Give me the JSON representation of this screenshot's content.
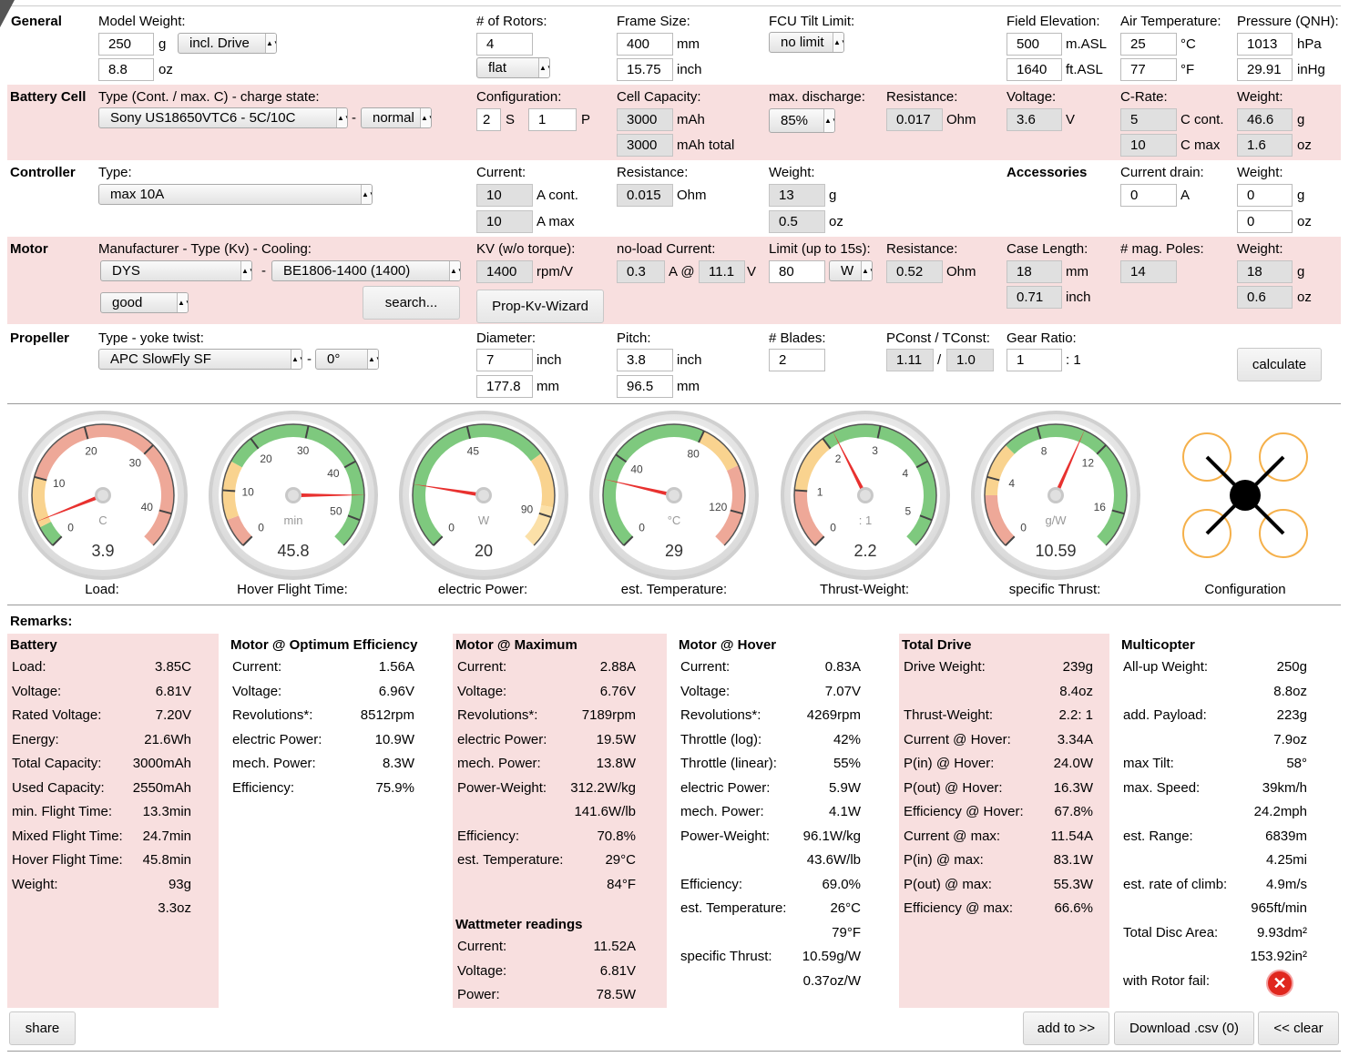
{
  "general": {
    "title": "General",
    "model_weight_label": "Model Weight:",
    "weight_g": "250",
    "unit_g": "g",
    "incl_drive": "incl. Drive",
    "weight_oz": "8.8",
    "unit_oz": "oz",
    "rotors_label": "# of Rotors:",
    "rotors": "4",
    "layout": "flat",
    "frame_label": "Frame Size:",
    "frame_mm": "400",
    "unit_mm": "mm",
    "frame_inch": "15.75",
    "unit_inch": "inch",
    "fcu_label": "FCU Tilt Limit:",
    "fcu": "no limit",
    "elev_label": "Field Elevation:",
    "elev_m": "500",
    "unit_masl": "m.ASL",
    "elev_ft": "1640",
    "unit_ftasl": "ft.ASL",
    "temp_label": "Air Temperature:",
    "temp_c": "25",
    "unit_c": "°C",
    "temp_f": "77",
    "unit_f": "°F",
    "press_label": "Pressure (QNH):",
    "press_hpa": "1013",
    "unit_hpa": "hPa",
    "press_inhg": "29.91",
    "unit_inhg": "inHg"
  },
  "battery": {
    "title": "Battery Cell",
    "type_label": "Type (Cont. / max. C) - charge state:",
    "type": "Sony US18650VTC6 - 5C/10C",
    "dash": "-",
    "charge": "normal",
    "config_label": "Configuration:",
    "s": "2",
    "s_unit": "S",
    "p": "1",
    "p_unit": "P",
    "cap_label": "Cell Capacity:",
    "cap": "3000",
    "cap_unit": "mAh",
    "cap_total": "3000",
    "cap_total_unit": "mAh total",
    "maxdis_label": "max. discharge:",
    "maxdis": "85%",
    "res_label": "Resistance:",
    "res": "0.017",
    "res_unit": "Ohm",
    "volt_label": "Voltage:",
    "volt": "3.6",
    "volt_unit": "V",
    "crate_label": "C-Rate:",
    "c_cont": "5",
    "c_cont_unit": "C cont.",
    "c_max": "10",
    "c_max_unit": "C max",
    "weight_label": "Weight:",
    "w_g": "46.6",
    "w_oz": "1.6"
  },
  "controller": {
    "title": "Controller",
    "type_label": "Type:",
    "type": "max 10A",
    "current_label": "Current:",
    "a_cont": "10",
    "a_cont_unit": "A cont.",
    "a_max": "10",
    "a_max_unit": "A max",
    "res_label": "Resistance:",
    "res": "0.015",
    "res_unit": "Ohm",
    "weight_label": "Weight:",
    "w_g": "13",
    "w_oz": "0.5",
    "acc_title": "Accessories",
    "drain_label": "Current drain:",
    "drain": "0",
    "drain_unit": "A",
    "acc_weight_label": "Weight:",
    "acc_w_g": "0",
    "acc_w_oz": "0"
  },
  "motor": {
    "title": "Motor",
    "mfr_label": "Manufacturer - Type (Kv) - Cooling:",
    "mfr": "DYS",
    "dash": "-",
    "type": "BE1806-1400 (1400)",
    "cooling": "good",
    "search": "search...",
    "kv_label": "KV (w/o torque):",
    "kv": "1400",
    "kv_unit": "rpm/V",
    "wizard": "Prop-Kv-Wizard",
    "noload_label": "no-load Current:",
    "noload_a": "0.3",
    "at": "A @",
    "noload_v": "11.1",
    "v_unit": "V",
    "limit_label": "Limit (up to 15s):",
    "limit": "80",
    "limit_unit": "W",
    "res_label": "Resistance:",
    "res": "0.52",
    "res_unit": "Ohm",
    "case_label": "Case Length:",
    "case_mm": "18",
    "case_inch": "0.71",
    "poles_label": "# mag. Poles:",
    "poles": "14",
    "weight_label": "Weight:",
    "w_g": "18",
    "w_oz": "0.6"
  },
  "propeller": {
    "title": "Propeller",
    "type_label": "Type - yoke twist:",
    "type": "APC SlowFly SF",
    "dash": "-",
    "twist": "0°",
    "dia_label": "Diameter:",
    "dia_in": "7",
    "dia_mm": "177.8",
    "pitch_label": "Pitch:",
    "pitch_in": "3.8",
    "pitch_mm": "96.5",
    "blades_label": "# Blades:",
    "blades": "2",
    "pconst_label": "PConst / TConst:",
    "pconst": "1.11",
    "slash": "/",
    "tconst": "1.0",
    "gear_label": "Gear Ratio:",
    "gear": "1",
    "gear_unit": ": 1",
    "calculate": "calculate"
  },
  "gauges": [
    {
      "label": "Load:",
      "value": "3.9",
      "unit": "C",
      "ticks": [
        "0",
        "10",
        "20",
        "30",
        "40"
      ],
      "min": 0,
      "max": 45,
      "reading": 3.9,
      "bands": [
        {
          "from": 0,
          "to": 3,
          "color": "#7ec97e"
        },
        {
          "from": 3,
          "to": 10,
          "color": "#f9d38f"
        },
        {
          "from": 10,
          "to": 45,
          "color": "#eea898"
        }
      ]
    },
    {
      "label": "Hover Flight Time:",
      "value": "45.8",
      "unit": "min",
      "ticks": [
        "0",
        "10",
        "20",
        "30",
        "40",
        "50"
      ],
      "min": 0,
      "max": 55,
      "reading": 45.8,
      "bands": [
        {
          "from": 0,
          "to": 5,
          "color": "#eea898"
        },
        {
          "from": 5,
          "to": 15,
          "color": "#f9d38f"
        },
        {
          "from": 15,
          "to": 55,
          "color": "#7ec97e"
        }
      ]
    },
    {
      "label": "electric Power:",
      "value": "20",
      "unit": "W",
      "ticks": [
        "0",
        "45",
        "90"
      ],
      "min": 0,
      "max": 100,
      "reading": 20,
      "bands": [
        {
          "from": 0,
          "to": 70,
          "color": "#7ec97e"
        },
        {
          "from": 70,
          "to": 87,
          "color": "#f9d38f"
        },
        {
          "from": 87,
          "to": 100,
          "color": "#fbe0a8"
        }
      ]
    },
    {
      "label": "est. Temperature:",
      "value": "29",
      "unit": "°C",
      "ticks": [
        "0",
        "40",
        "80",
        "120"
      ],
      "min": 0,
      "max": 135,
      "reading": 29,
      "bands": [
        {
          "from": 0,
          "to": 80,
          "color": "#7ec97e"
        },
        {
          "from": 80,
          "to": 100,
          "color": "#f9d38f"
        },
        {
          "from": 100,
          "to": 135,
          "color": "#eea898"
        }
      ]
    },
    {
      "label": "Thrust-Weight:",
      "value": "2.2",
      "unit": ": 1",
      "ticks": [
        "0",
        "1",
        "2",
        "3",
        "4",
        "5"
      ],
      "min": 0,
      "max": 5.5,
      "reading": 2.2,
      "bands": [
        {
          "from": 0,
          "to": 1,
          "color": "#eea898"
        },
        {
          "from": 1,
          "to": 2,
          "color": "#f9d38f"
        },
        {
          "from": 2,
          "to": 5.5,
          "color": "#7ec97e"
        }
      ]
    },
    {
      "label": "specific Thrust:",
      "value": "10.59",
      "unit": "g/W",
      "ticks": [
        "0",
        "4",
        "8",
        "12",
        "16"
      ],
      "min": 0,
      "max": 18,
      "reading": 10.59,
      "bands": [
        {
          "from": 0,
          "to": 3,
          "color": "#eea898"
        },
        {
          "from": 3,
          "to": 6,
          "color": "#f9d38f"
        },
        {
          "from": 6,
          "to": 18,
          "color": "#7ec97e"
        }
      ]
    }
  ],
  "config_label": "Configuration",
  "remarks": "Remarks:",
  "battery_res": {
    "title": "Battery",
    "rows": [
      [
        "Load:",
        "3.85 C"
      ],
      [
        "Voltage:",
        "6.81 V"
      ],
      [
        "Rated Voltage:",
        "7.20 V"
      ],
      [
        "Energy:",
        "21.6 Wh"
      ],
      [
        "Total Capacity:",
        "3000 mAh"
      ],
      [
        "Used Capacity:",
        "2550 mAh"
      ],
      [
        "min. Flight Time:",
        "13.3 min"
      ],
      [
        "Mixed Flight Time:",
        "24.7 min"
      ],
      [
        "Hover Flight Time:",
        "45.8 min"
      ],
      [
        "Weight:",
        "93 g"
      ],
      [
        "",
        "3.3 oz"
      ]
    ]
  },
  "opt_res": {
    "title": "Motor @ Optimum Efficiency",
    "rows": [
      [
        "Current:",
        "1.56 A"
      ],
      [
        "Voltage:",
        "6.96 V"
      ],
      [
        "Revolutions*:",
        "8512 rpm"
      ],
      [
        "electric Power:",
        "10.9 W"
      ],
      [
        "mech. Power:",
        "8.3 W"
      ],
      [
        "Efficiency:",
        "75.9 %"
      ]
    ]
  },
  "max_res": {
    "title": "Motor @ Maximum",
    "rows": [
      [
        "Current:",
        "2.88 A"
      ],
      [
        "Voltage:",
        "6.76 V"
      ],
      [
        "Revolutions*:",
        "7189 rpm"
      ],
      [
        "electric Power:",
        "19.5 W"
      ],
      [
        "mech. Power:",
        "13.8 W"
      ],
      [
        "Power-Weight:",
        "312.2 W/kg"
      ],
      [
        "",
        "141.6 W/lb"
      ],
      [
        "Efficiency:",
        "70.8 %"
      ],
      [
        "est. Temperature:",
        "29 °C"
      ],
      [
        "",
        "84 °F"
      ]
    ]
  },
  "watt_res": {
    "title": "Wattmeter readings",
    "rows": [
      [
        "Current:",
        "11.52 A"
      ],
      [
        "Voltage:",
        "6.81 V"
      ],
      [
        "Power:",
        "78.5 W"
      ]
    ]
  },
  "hover_res": {
    "title": "Motor @ Hover",
    "rows": [
      [
        "Current:",
        "0.83 A"
      ],
      [
        "Voltage:",
        "7.07 V"
      ],
      [
        "Revolutions*:",
        "4269 rpm"
      ],
      [
        "Throttle (log):",
        "42 %"
      ],
      [
        "Throttle (linear):",
        "55 %"
      ],
      [
        "electric Power:",
        "5.9 W"
      ],
      [
        "mech. Power:",
        "4.1 W"
      ],
      [
        "Power-Weight:",
        "96.1 W/kg"
      ],
      [
        "",
        "43.6 W/lb"
      ],
      [
        "Efficiency:",
        "69.0 %"
      ],
      [
        "est. Temperature:",
        "26 °C"
      ],
      [
        "",
        "79 °F"
      ],
      [
        "specific Thrust:",
        "10.59 g/W"
      ],
      [
        "",
        "0.37 oz/W"
      ]
    ]
  },
  "drive_res": {
    "title": "Total Drive",
    "rows": [
      [
        "Drive Weight:",
        "239 g"
      ],
      [
        "",
        "8.4 oz"
      ],
      [
        "Thrust-Weight:",
        "2.2 : 1"
      ],
      [
        "Current @ Hover:",
        "3.34 A"
      ],
      [
        "P(in) @ Hover:",
        "24.0 W"
      ],
      [
        "P(out) @ Hover:",
        "16.3 W"
      ],
      [
        "Efficiency @ Hover:",
        "67.8 %"
      ],
      [
        "Current @ max:",
        "11.54 A"
      ],
      [
        "P(in) @ max:",
        "83.1 W"
      ],
      [
        "P(out) @ max:",
        "55.3 W"
      ],
      [
        "Efficiency @ max:",
        "66.6 %"
      ]
    ]
  },
  "multi_res": {
    "title": "Multicopter",
    "rows": [
      [
        "All-up Weight:",
        "250 g"
      ],
      [
        "",
        "8.8 oz"
      ],
      [
        "add. Payload:",
        "223 g"
      ],
      [
        "",
        "7.9 oz"
      ],
      [
        "max Tilt:",
        "58 °"
      ],
      [
        "max. Speed:",
        "39 km/h"
      ],
      [
        "",
        "24.2 mph"
      ],
      [
        "est. Range:",
        "6839 m"
      ],
      [
        "",
        "4.25 mi"
      ],
      [
        "est. rate of climb:",
        "4.9 m/s"
      ],
      [
        "",
        "965 ft/min"
      ],
      [
        "Total Disc Area:",
        "9.93 dm²"
      ],
      [
        "",
        "153.92 in²"
      ],
      [
        "with Rotor fail:",
        ""
      ]
    ]
  },
  "footer": {
    "share": "share",
    "add": "add to >>",
    "download": "Download .csv (0)",
    "clear": "<< clear"
  }
}
